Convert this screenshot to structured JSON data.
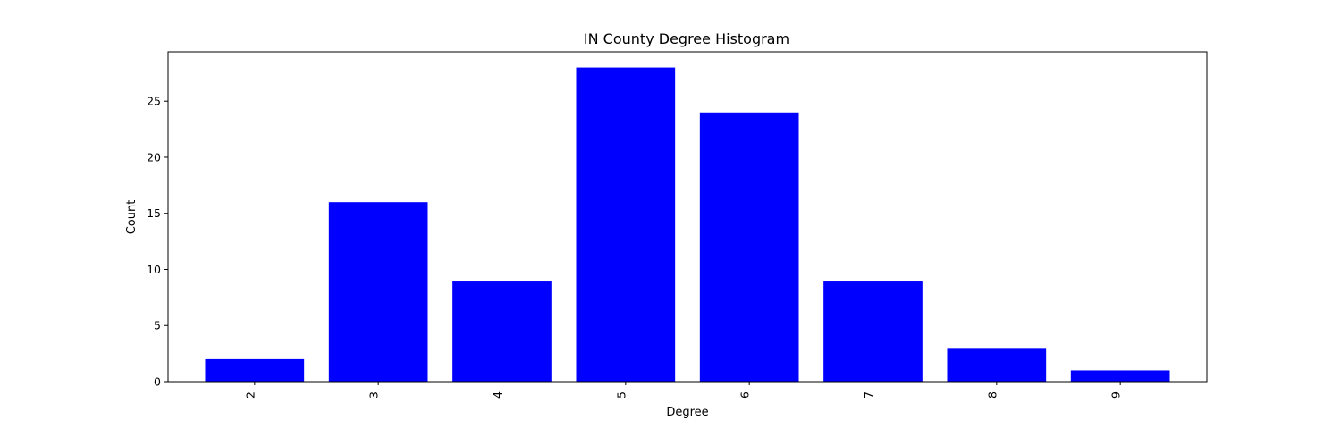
{
  "chart_data": {
    "type": "bar",
    "title": "IN County Degree Histogram",
    "xlabel": "Degree",
    "ylabel": "Count",
    "categories": [
      "2",
      "3",
      "4",
      "5",
      "6",
      "7",
      "8",
      "9"
    ],
    "values": [
      2,
      16,
      9,
      28,
      24,
      9,
      3,
      1
    ],
    "ylim": [
      0,
      29.4
    ],
    "yticks": [
      "0",
      "5",
      "10",
      "15",
      "20",
      "25"
    ],
    "x_tick_rotation": "rotated",
    "bar_color": "#0000ff",
    "grid": false,
    "legend": "none"
  }
}
